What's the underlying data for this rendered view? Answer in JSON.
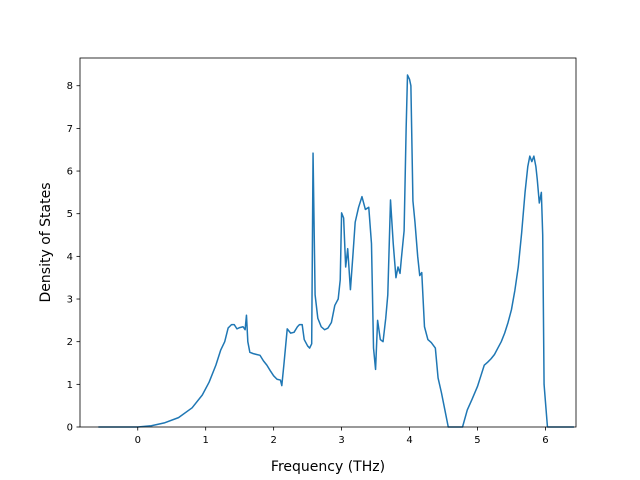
{
  "chart_data": {
    "type": "line",
    "title": "",
    "xlabel": "Frequency (THz)",
    "ylabel": "Density of States",
    "xlim": [
      -0.85,
      6.45
    ],
    "ylim": [
      0,
      8.65
    ],
    "xticks": [
      0,
      1,
      2,
      3,
      4,
      5,
      6
    ],
    "yticks": [
      0,
      1,
      2,
      3,
      4,
      5,
      6,
      7,
      8
    ],
    "grid": false,
    "legend": "none",
    "series": [
      {
        "color": "#1f77b4",
        "points": [
          [
            -0.58,
            0.0
          ],
          [
            0.0,
            0.0
          ],
          [
            0.2,
            0.03
          ],
          [
            0.4,
            0.1
          ],
          [
            0.6,
            0.22
          ],
          [
            0.8,
            0.45
          ],
          [
            0.95,
            0.75
          ],
          [
            1.05,
            1.05
          ],
          [
            1.15,
            1.45
          ],
          [
            1.22,
            1.8
          ],
          [
            1.28,
            2.0
          ],
          [
            1.33,
            2.32
          ],
          [
            1.38,
            2.4
          ],
          [
            1.42,
            2.4
          ],
          [
            1.46,
            2.3
          ],
          [
            1.5,
            2.33
          ],
          [
            1.55,
            2.35
          ],
          [
            1.58,
            2.28
          ],
          [
            1.6,
            2.62
          ],
          [
            1.62,
            2.0
          ],
          [
            1.65,
            1.75
          ],
          [
            1.7,
            1.72
          ],
          [
            1.75,
            1.7
          ],
          [
            1.8,
            1.68
          ],
          [
            1.85,
            1.55
          ],
          [
            1.9,
            1.45
          ],
          [
            1.95,
            1.32
          ],
          [
            2.0,
            1.2
          ],
          [
            2.05,
            1.12
          ],
          [
            2.1,
            1.1
          ],
          [
            2.12,
            0.97
          ],
          [
            2.15,
            1.45
          ],
          [
            2.2,
            2.3
          ],
          [
            2.25,
            2.2
          ],
          [
            2.3,
            2.22
          ],
          [
            2.35,
            2.35
          ],
          [
            2.38,
            2.4
          ],
          [
            2.42,
            2.4
          ],
          [
            2.45,
            2.05
          ],
          [
            2.5,
            1.9
          ],
          [
            2.53,
            1.85
          ],
          [
            2.56,
            1.95
          ],
          [
            2.58,
            6.42
          ],
          [
            2.61,
            3.1
          ],
          [
            2.65,
            2.55
          ],
          [
            2.7,
            2.35
          ],
          [
            2.75,
            2.28
          ],
          [
            2.8,
            2.32
          ],
          [
            2.85,
            2.45
          ],
          [
            2.9,
            2.85
          ],
          [
            2.95,
            3.0
          ],
          [
            2.98,
            3.45
          ],
          [
            3.0,
            5.02
          ],
          [
            3.03,
            4.9
          ],
          [
            3.06,
            3.75
          ],
          [
            3.09,
            4.18
          ],
          [
            3.13,
            3.22
          ],
          [
            3.17,
            4.1
          ],
          [
            3.2,
            4.8
          ],
          [
            3.25,
            5.15
          ],
          [
            3.3,
            5.4
          ],
          [
            3.35,
            5.1
          ],
          [
            3.4,
            5.15
          ],
          [
            3.44,
            4.3
          ],
          [
            3.47,
            1.85
          ],
          [
            3.5,
            1.35
          ],
          [
            3.53,
            2.5
          ],
          [
            3.57,
            2.05
          ],
          [
            3.61,
            2.0
          ],
          [
            3.65,
            2.55
          ],
          [
            3.68,
            3.1
          ],
          [
            3.72,
            5.32
          ],
          [
            3.76,
            4.3
          ],
          [
            3.8,
            3.5
          ],
          [
            3.83,
            3.75
          ],
          [
            3.86,
            3.6
          ],
          [
            3.88,
            3.95
          ],
          [
            3.92,
            4.6
          ],
          [
            3.95,
            7.0
          ],
          [
            3.97,
            8.25
          ],
          [
            4.0,
            8.15
          ],
          [
            4.02,
            8.0
          ],
          [
            4.05,
            5.3
          ],
          [
            4.08,
            4.8
          ],
          [
            4.12,
            4.0
          ],
          [
            4.15,
            3.55
          ],
          [
            4.18,
            3.62
          ],
          [
            4.22,
            2.35
          ],
          [
            4.27,
            2.05
          ],
          [
            4.32,
            1.98
          ],
          [
            4.38,
            1.85
          ],
          [
            4.42,
            1.15
          ],
          [
            4.47,
            0.8
          ],
          [
            4.52,
            0.4
          ],
          [
            4.57,
            0.0
          ],
          [
            4.7,
            0.0
          ],
          [
            4.78,
            0.0
          ],
          [
            4.85,
            0.4
          ],
          [
            4.92,
            0.65
          ],
          [
            5.0,
            0.95
          ],
          [
            5.05,
            1.2
          ],
          [
            5.1,
            1.45
          ],
          [
            5.15,
            1.52
          ],
          [
            5.2,
            1.6
          ],
          [
            5.25,
            1.7
          ],
          [
            5.3,
            1.85
          ],
          [
            5.35,
            2.0
          ],
          [
            5.4,
            2.2
          ],
          [
            5.45,
            2.45
          ],
          [
            5.5,
            2.75
          ],
          [
            5.55,
            3.2
          ],
          [
            5.6,
            3.75
          ],
          [
            5.65,
            4.55
          ],
          [
            5.7,
            5.5
          ],
          [
            5.74,
            6.1
          ],
          [
            5.77,
            6.35
          ],
          [
            5.8,
            6.22
          ],
          [
            5.83,
            6.35
          ],
          [
            5.86,
            6.1
          ],
          [
            5.88,
            5.8
          ],
          [
            5.91,
            5.25
          ],
          [
            5.94,
            5.5
          ],
          [
            5.96,
            4.5
          ],
          [
            5.98,
            1.0
          ],
          [
            6.0,
            0.6
          ],
          [
            6.03,
            0.0
          ],
          [
            6.2,
            0.0
          ],
          [
            6.42,
            0.0
          ]
        ]
      }
    ]
  }
}
